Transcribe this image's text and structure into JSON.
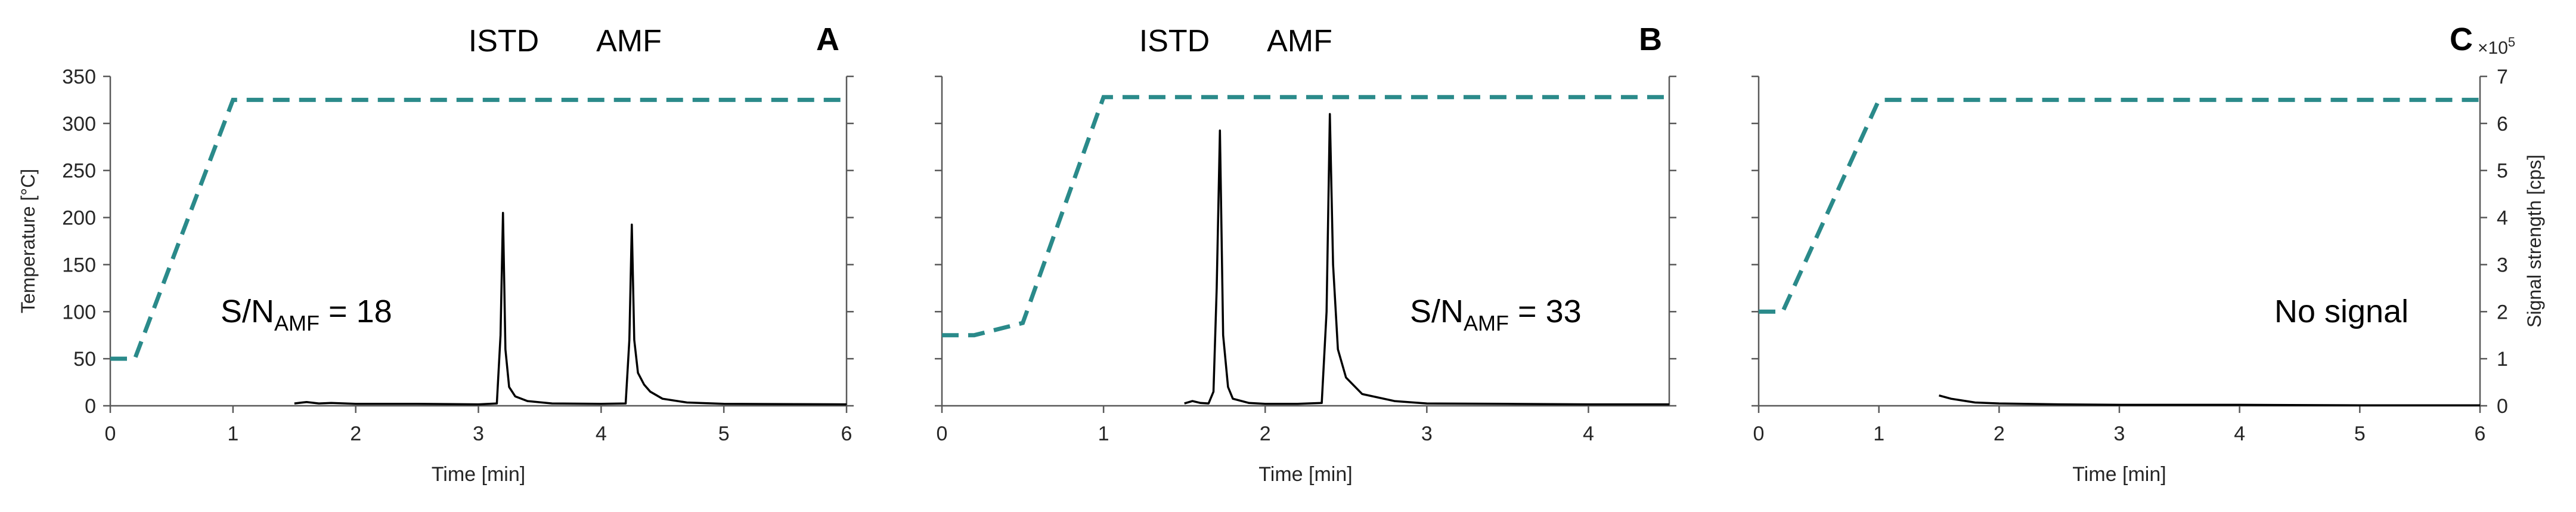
{
  "chart_data": [
    {
      "type": "line",
      "panel_label": "A",
      "peak_labels": [
        "ISTD",
        "AMF"
      ],
      "annotation": {
        "main": "S/N",
        "sub": "AMF",
        "tail": " = 18"
      },
      "xlabel": "Time [min]",
      "ylabel_left": "Temperature [°C]",
      "xlim": [
        0,
        6
      ],
      "xticks": [
        "0",
        "1",
        "2",
        "3",
        "4",
        "5",
        "6"
      ],
      "ylim_left": [
        0,
        350
      ],
      "yticks_left": [
        "0",
        "50",
        "100",
        "150",
        "200",
        "250",
        "300",
        "350"
      ],
      "ylim_right": [
        0,
        7
      ],
      "colors": {
        "temperature": "#2a8a8a",
        "signal": "#000000"
      },
      "series": [
        {
          "kind": "temperature",
          "x": [
            0,
            0.2,
            1.0,
            6.0
          ],
          "y": [
            50,
            50,
            325,
            325
          ]
        },
        {
          "kind": "signal",
          "x": [
            1.5,
            1.6,
            1.7,
            1.8,
            2.0,
            2.5,
            3.0,
            3.15,
            3.18,
            3.2,
            3.22,
            3.25,
            3.3,
            3.4,
            3.6,
            4.0,
            4.2,
            4.23,
            4.25,
            4.27,
            4.3,
            4.35,
            4.4,
            4.5,
            4.7,
            5.0,
            6.0
          ],
          "y": [
            0.05,
            0.08,
            0.05,
            0.06,
            0.04,
            0.04,
            0.03,
            0.05,
            1.5,
            4.1,
            1.2,
            0.4,
            0.2,
            0.1,
            0.05,
            0.04,
            0.05,
            1.4,
            3.85,
            1.4,
            0.7,
            0.45,
            0.3,
            0.15,
            0.07,
            0.04,
            0.03
          ]
        }
      ]
    },
    {
      "type": "line",
      "panel_label": "B",
      "peak_labels": [
        "ISTD",
        "AMF"
      ],
      "annotation": {
        "main": "S/N",
        "sub": "AMF",
        "tail": " = 33"
      },
      "xlabel": "Time [min]",
      "xlim": [
        0,
        4.5
      ],
      "xticks": [
        "0",
        "1",
        "2",
        "3",
        "4"
      ],
      "ylim_left": [
        0,
        350
      ],
      "ylim_right": [
        0,
        7
      ],
      "colors": {
        "temperature": "#2a8a8a",
        "signal": "#000000"
      },
      "series": [
        {
          "kind": "temperature",
          "x": [
            0,
            0.2,
            0.5,
            1.0,
            4.5
          ],
          "y": [
            75,
            75,
            88,
            328,
            328
          ]
        },
        {
          "kind": "signal",
          "x": [
            1.5,
            1.55,
            1.6,
            1.65,
            1.68,
            1.7,
            1.72,
            1.74,
            1.77,
            1.8,
            1.9,
            2.0,
            2.2,
            2.35,
            2.38,
            2.4,
            2.42,
            2.45,
            2.5,
            2.6,
            2.8,
            3.0,
            3.5,
            4.0,
            4.5
          ],
          "y": [
            0.05,
            0.1,
            0.06,
            0.05,
            0.3,
            2.5,
            5.85,
            1.5,
            0.4,
            0.15,
            0.06,
            0.04,
            0.04,
            0.06,
            2.0,
            6.2,
            3.0,
            1.2,
            0.6,
            0.25,
            0.1,
            0.05,
            0.04,
            0.03,
            0.03
          ]
        }
      ]
    },
    {
      "type": "line",
      "panel_label": "C",
      "annotation": {
        "main": "No signal",
        "sub": "",
        "tail": ""
      },
      "xlabel": "Time [min]",
      "ylabel_right": "Signal strength [cps]",
      "right_multiplier": {
        "base": "×10",
        "exp": "5"
      },
      "xlim": [
        0,
        6
      ],
      "xticks": [
        "0",
        "1",
        "2",
        "3",
        "4",
        "5",
        "6"
      ],
      "ylim_left": [
        0,
        350
      ],
      "ylim_right": [
        0,
        7
      ],
      "yticks_right": [
        "0",
        "1",
        "2",
        "3",
        "4",
        "5",
        "6",
        "7"
      ],
      "colors": {
        "temperature": "#2a8a8a",
        "signal": "#000000"
      },
      "series": [
        {
          "kind": "temperature",
          "x": [
            0,
            0.2,
            1.0,
            6.0
          ],
          "y": [
            100,
            100,
            325,
            325
          ]
        },
        {
          "kind": "signal",
          "x": [
            1.5,
            1.6,
            1.8,
            2.0,
            2.5,
            3.0,
            4.0,
            5.0,
            6.0
          ],
          "y": [
            0.22,
            0.15,
            0.07,
            0.05,
            0.03,
            0.02,
            0.02,
            0.01,
            0.01
          ]
        }
      ]
    }
  ]
}
